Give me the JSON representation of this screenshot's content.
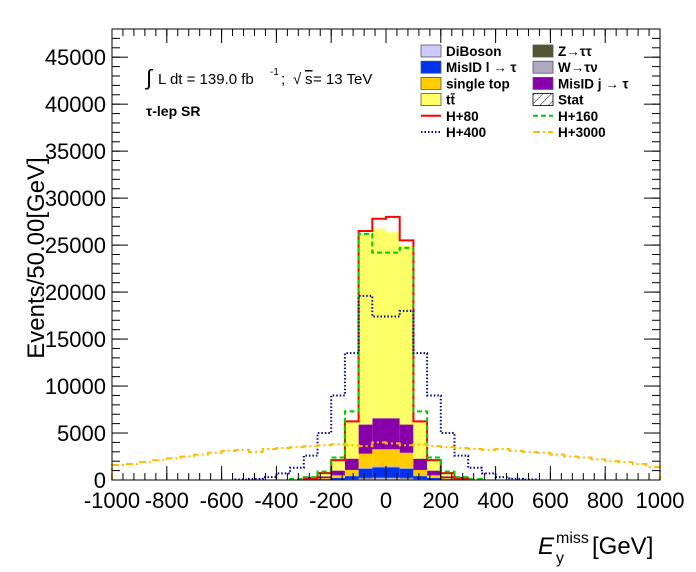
{
  "chart_data": {
    "type": "bar",
    "xlabel": "E_y^miss[GeV]",
    "xlabel_main": "E",
    "xlabel_sub": "y",
    "xlabel_sup": "miss",
    "xlabel_unit": "[GeV]",
    "ylabel": "Events/50.00[GeV]",
    "xlim": [
      -1000,
      1000
    ],
    "ylim": [
      0,
      48000
    ],
    "x_ticks": [
      "-1000",
      "-800",
      "-600",
      "-400",
      "-200",
      "0",
      "200",
      "400",
      "600",
      "800",
      "1000"
    ],
    "y_ticks": [
      "0",
      "5000",
      "10000",
      "15000",
      "20000",
      "25000",
      "30000",
      "35000",
      "40000",
      "45000"
    ],
    "annotation": {
      "lumi_integral": "∫",
      "lumi": "L dt = 139.0 fb",
      "lumi_sup": "-1",
      "energy_sep": ";",
      "energy_sqrt": "√",
      "energy_s": "s",
      "energy": " = 13 TeV",
      "region": "τ-lep SR"
    },
    "bins_low": [
      -300,
      -250,
      -200,
      -150,
      -100,
      -50,
      0,
      50,
      100,
      150,
      200,
      250
    ],
    "bins_high": [
      -250,
      -200,
      -150,
      -100,
      -50,
      0,
      50,
      100,
      150,
      200,
      250,
      300
    ],
    "stack": [
      {
        "name": "DiBoson",
        "color": "#ccccff",
        "values": [
          8,
          20,
          40,
          70,
          160,
          190,
          190,
          160,
          70,
          40,
          20,
          8
        ]
      },
      {
        "name": "Z→ττ",
        "color": "#555533",
        "values": [
          4,
          10,
          20,
          40,
          90,
          110,
          110,
          90,
          40,
          20,
          10,
          4
        ]
      },
      {
        "name": "MisID l → τ",
        "color": "#0033ee",
        "values": [
          20,
          60,
          150,
          300,
          950,
          1050,
          1050,
          950,
          300,
          150,
          60,
          20
        ]
      },
      {
        "name": "W→τν",
        "color": "#b0a8c0",
        "values": [
          5,
          15,
          30,
          60,
          100,
          120,
          120,
          100,
          60,
          30,
          15,
          5
        ]
      },
      {
        "name": "single top",
        "color": "#ffcc00",
        "values": [
          30,
          90,
          260,
          600,
          1500,
          1800,
          1800,
          1600,
          600,
          260,
          90,
          30
        ]
      },
      {
        "name": "MisID j → τ",
        "color": "#8800aa",
        "values": [
          60,
          180,
          500,
          1200,
          3100,
          3300,
          3300,
          3000,
          1200,
          500,
          180,
          60
        ]
      },
      {
        "name": "tt̄",
        "color": "#ffff66",
        "values": [
          80,
          350,
          1100,
          3900,
          20400,
          20200,
          19800,
          19000,
          3900,
          1100,
          350,
          80
        ]
      }
    ],
    "legend": [
      {
        "name": "DiBoson",
        "kind": "fill",
        "color": "#ccccff"
      },
      {
        "name": "Z→ττ",
        "kind": "fill",
        "color": "#555533"
      },
      {
        "name": "MisID l → τ",
        "kind": "fill",
        "color": "#0033ee"
      },
      {
        "name": "W→τν",
        "kind": "fill",
        "color": "#b0a8c0"
      },
      {
        "name": "single top",
        "kind": "fill",
        "color": "#ffcc00"
      },
      {
        "name": "MisID j → τ",
        "kind": "fill",
        "color": "#8800aa"
      },
      {
        "name": "tt̄",
        "kind": "fill",
        "color": "#ffff66"
      },
      {
        "name": "Stat",
        "kind": "hatch",
        "color": "#000000"
      },
      {
        "name": "H+80",
        "kind": "line",
        "color": "#ff0000",
        "dash": "solid"
      },
      {
        "name": "H+160",
        "kind": "line",
        "color": "#00cc00",
        "dash": "dashed"
      },
      {
        "name": "H+400",
        "kind": "line",
        "color": "#000088",
        "dash": "dotted"
      },
      {
        "name": "H+3000",
        "kind": "line",
        "color": "#ffbb00",
        "dash": "dashdot"
      }
    ],
    "signals": [
      {
        "name": "H+80",
        "color": "#ff0000",
        "dash": "solid",
        "bins_low": [
          -300,
          -250,
          -200,
          -150,
          -100,
          -50,
          0,
          50,
          100,
          150,
          200,
          250
        ],
        "bins_high": [
          -250,
          -200,
          -150,
          -100,
          -50,
          0,
          50,
          100,
          150,
          200,
          250,
          300
        ],
        "values": [
          210,
          730,
          2110,
          6240,
          26500,
          27800,
          28000,
          25500,
          6240,
          2110,
          730,
          210
        ]
      },
      {
        "name": "H+160",
        "color": "#00cc00",
        "dash": "dashed",
        "bins_low": [
          -350,
          -300,
          -250,
          -200,
          -150,
          -100,
          -50,
          0,
          50,
          100,
          150,
          200,
          250,
          300
        ],
        "bins_high": [
          -300,
          -250,
          -200,
          -150,
          -100,
          -50,
          0,
          50,
          100,
          150,
          200,
          250,
          300,
          350
        ],
        "values": [
          100,
          300,
          900,
          2400,
          7300,
          26200,
          24200,
          24200,
          24700,
          7300,
          2400,
          900,
          300,
          100
        ]
      },
      {
        "name": "H+400",
        "color": "#000088",
        "dash": "dotted",
        "bins_low": [
          -550,
          -500,
          -450,
          -400,
          -350,
          -300,
          -250,
          -200,
          -150,
          -100,
          -50,
          0,
          50,
          100,
          150,
          200,
          250,
          300,
          350,
          400,
          450,
          500
        ],
        "bins_high": [
          -500,
          -450,
          -400,
          -350,
          -300,
          -250,
          -200,
          -150,
          -100,
          -50,
          0,
          50,
          100,
          150,
          200,
          250,
          300,
          350,
          400,
          450,
          500,
          550
        ],
        "values": [
          50,
          120,
          300,
          700,
          1300,
          2600,
          5000,
          9000,
          13500,
          19600,
          17400,
          17400,
          18000,
          13500,
          9000,
          5000,
          2600,
          1300,
          700,
          300,
          120,
          50
        ]
      },
      {
        "name": "H+3000",
        "color": "#ffbb00",
        "dash": "dashdot",
        "bins_low": [
          -1000,
          -950,
          -900,
          -850,
          -800,
          -750,
          -700,
          -650,
          -600,
          -550,
          -500,
          -450,
          -400,
          -350,
          -300,
          -250,
          -200,
          -150,
          -100,
          -50,
          0,
          50,
          100,
          150,
          200,
          250,
          300,
          350,
          400,
          450,
          500,
          550,
          600,
          650,
          700,
          750,
          800,
          850,
          900,
          950
        ],
        "bins_high": [
          -950,
          -900,
          -850,
          -800,
          -750,
          -700,
          -650,
          -600,
          -550,
          -500,
          -450,
          -400,
          -350,
          -300,
          -250,
          -200,
          -150,
          -100,
          -50,
          0,
          50,
          100,
          150,
          200,
          250,
          300,
          350,
          400,
          450,
          500,
          550,
          600,
          650,
          700,
          750,
          800,
          850,
          900,
          950,
          1000
        ],
        "values": [
          1600,
          1700,
          1900,
          2100,
          2300,
          2500,
          2700,
          2900,
          3100,
          3200,
          3000,
          3300,
          3400,
          3500,
          3600,
          3700,
          3800,
          3700,
          3600,
          4000,
          3900,
          3700,
          3800,
          3600,
          3500,
          3400,
          3300,
          3200,
          3300,
          3100,
          3000,
          2900,
          2700,
          2500,
          2400,
          2200,
          2000,
          1900,
          1700,
          1400
        ]
      }
    ]
  }
}
